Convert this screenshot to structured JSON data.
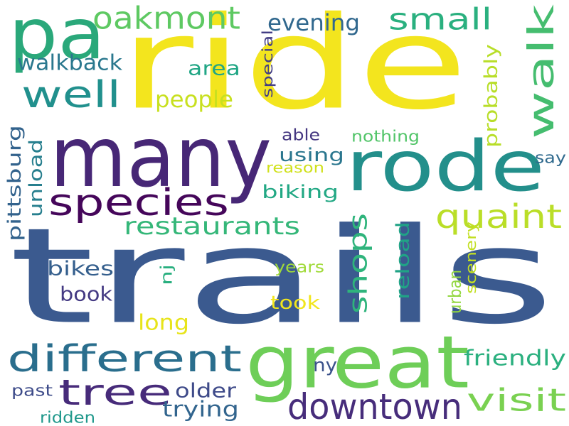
{
  "words": [
    {
      "text": "trails",
      "color": "#3b5a8f",
      "orientation": "horizontal"
    },
    {
      "text": "ride",
      "color": "#f3e51e",
      "orientation": "horizontal"
    },
    {
      "text": "many",
      "color": "#472776",
      "orientation": "horizontal"
    },
    {
      "text": "great",
      "color": "#6ece58",
      "orientation": "horizontal"
    },
    {
      "text": "rode",
      "color": "#238f8b",
      "orientation": "horizontal"
    },
    {
      "text": "pa",
      "color": "#2aa87a",
      "orientation": "horizontal"
    },
    {
      "text": "walk",
      "color": "#45bd6f",
      "orientation": "vertical"
    },
    {
      "text": "different",
      "color": "#2a6e8d",
      "orientation": "horizontal"
    },
    {
      "text": "species",
      "color": "#45065a",
      "orientation": "horizontal"
    },
    {
      "text": "tree",
      "color": "#472b7a",
      "orientation": "horizontal"
    },
    {
      "text": "downtown",
      "color": "#472d7b",
      "orientation": "horizontal"
    },
    {
      "text": "well",
      "color": "#21908d",
      "orientation": "horizontal"
    },
    {
      "text": "visit",
      "color": "#7ad151",
      "orientation": "horizontal"
    },
    {
      "text": "quaint",
      "color": "#bade28",
      "orientation": "horizontal"
    },
    {
      "text": "oakmont",
      "color": "#5ec962",
      "orientation": "horizontal"
    },
    {
      "text": "small",
      "color": "#2ab07f",
      "orientation": "horizontal"
    },
    {
      "text": "restaurants",
      "color": "#35b779",
      "orientation": "horizontal"
    },
    {
      "text": "shops",
      "color": "#2fb47c",
      "orientation": "vertical"
    },
    {
      "text": "walkback",
      "color": "#2a788e",
      "orientation": "horizontal"
    },
    {
      "text": "evening",
      "color": "#31688e",
      "orientation": "horizontal"
    },
    {
      "text": "people",
      "color": "#c8e020",
      "orientation": "horizontal"
    },
    {
      "text": "area",
      "color": "#21a685",
      "orientation": "horizontal"
    },
    {
      "text": "friendly",
      "color": "#2bb07f",
      "orientation": "horizontal"
    },
    {
      "text": "trying",
      "color": "#32658e",
      "orientation": "horizontal"
    },
    {
      "text": "older",
      "color": "#3e4a89",
      "orientation": "horizontal"
    },
    {
      "text": "book",
      "color": "#443a83",
      "orientation": "horizontal"
    },
    {
      "text": "bikes",
      "color": "#355f8d",
      "orientation": "horizontal"
    },
    {
      "text": "biking",
      "color": "#22a884",
      "orientation": "horizontal"
    },
    {
      "text": "using",
      "color": "#2a768e",
      "orientation": "horizontal"
    },
    {
      "text": "took",
      "color": "#f1e51d",
      "orientation": "horizontal"
    },
    {
      "text": "long",
      "color": "#e7e419",
      "orientation": "horizontal"
    },
    {
      "text": "probably",
      "color": "#b8de29",
      "orientation": "vertical"
    },
    {
      "text": "pittsburg",
      "color": "#33638d",
      "orientation": "vertical"
    },
    {
      "text": "unload",
      "color": "#277f8e",
      "orientation": "vertical"
    },
    {
      "text": "reload",
      "color": "#20a386",
      "orientation": "vertical"
    },
    {
      "text": "urban",
      "color": "#93d741",
      "orientation": "vertical"
    },
    {
      "text": "special",
      "color": "#433e85",
      "orientation": "vertical"
    },
    {
      "text": "scenery",
      "color": "#c2df23",
      "orientation": "vertical"
    },
    {
      "text": "nj",
      "color": "#29af7f",
      "orientation": "vertical"
    },
    {
      "text": "ny",
      "color": "#3b528b",
      "orientation": "horizontal"
    },
    {
      "text": "able",
      "color": "#453781",
      "orientation": "horizontal"
    },
    {
      "text": "nothing",
      "color": "#52c569",
      "orientation": "horizontal"
    },
    {
      "text": "reason",
      "color": "#d0e11c",
      "orientation": "horizontal"
    },
    {
      "text": "say",
      "color": "#306a8e",
      "orientation": "horizontal"
    },
    {
      "text": "years",
      "color": "#a0da39",
      "orientation": "horizontal"
    },
    {
      "text": "past",
      "color": "#3e4c8a",
      "orientation": "horizontal"
    },
    {
      "text": "ridden",
      "color": "#1f988b",
      "orientation": "horizontal"
    }
  ]
}
